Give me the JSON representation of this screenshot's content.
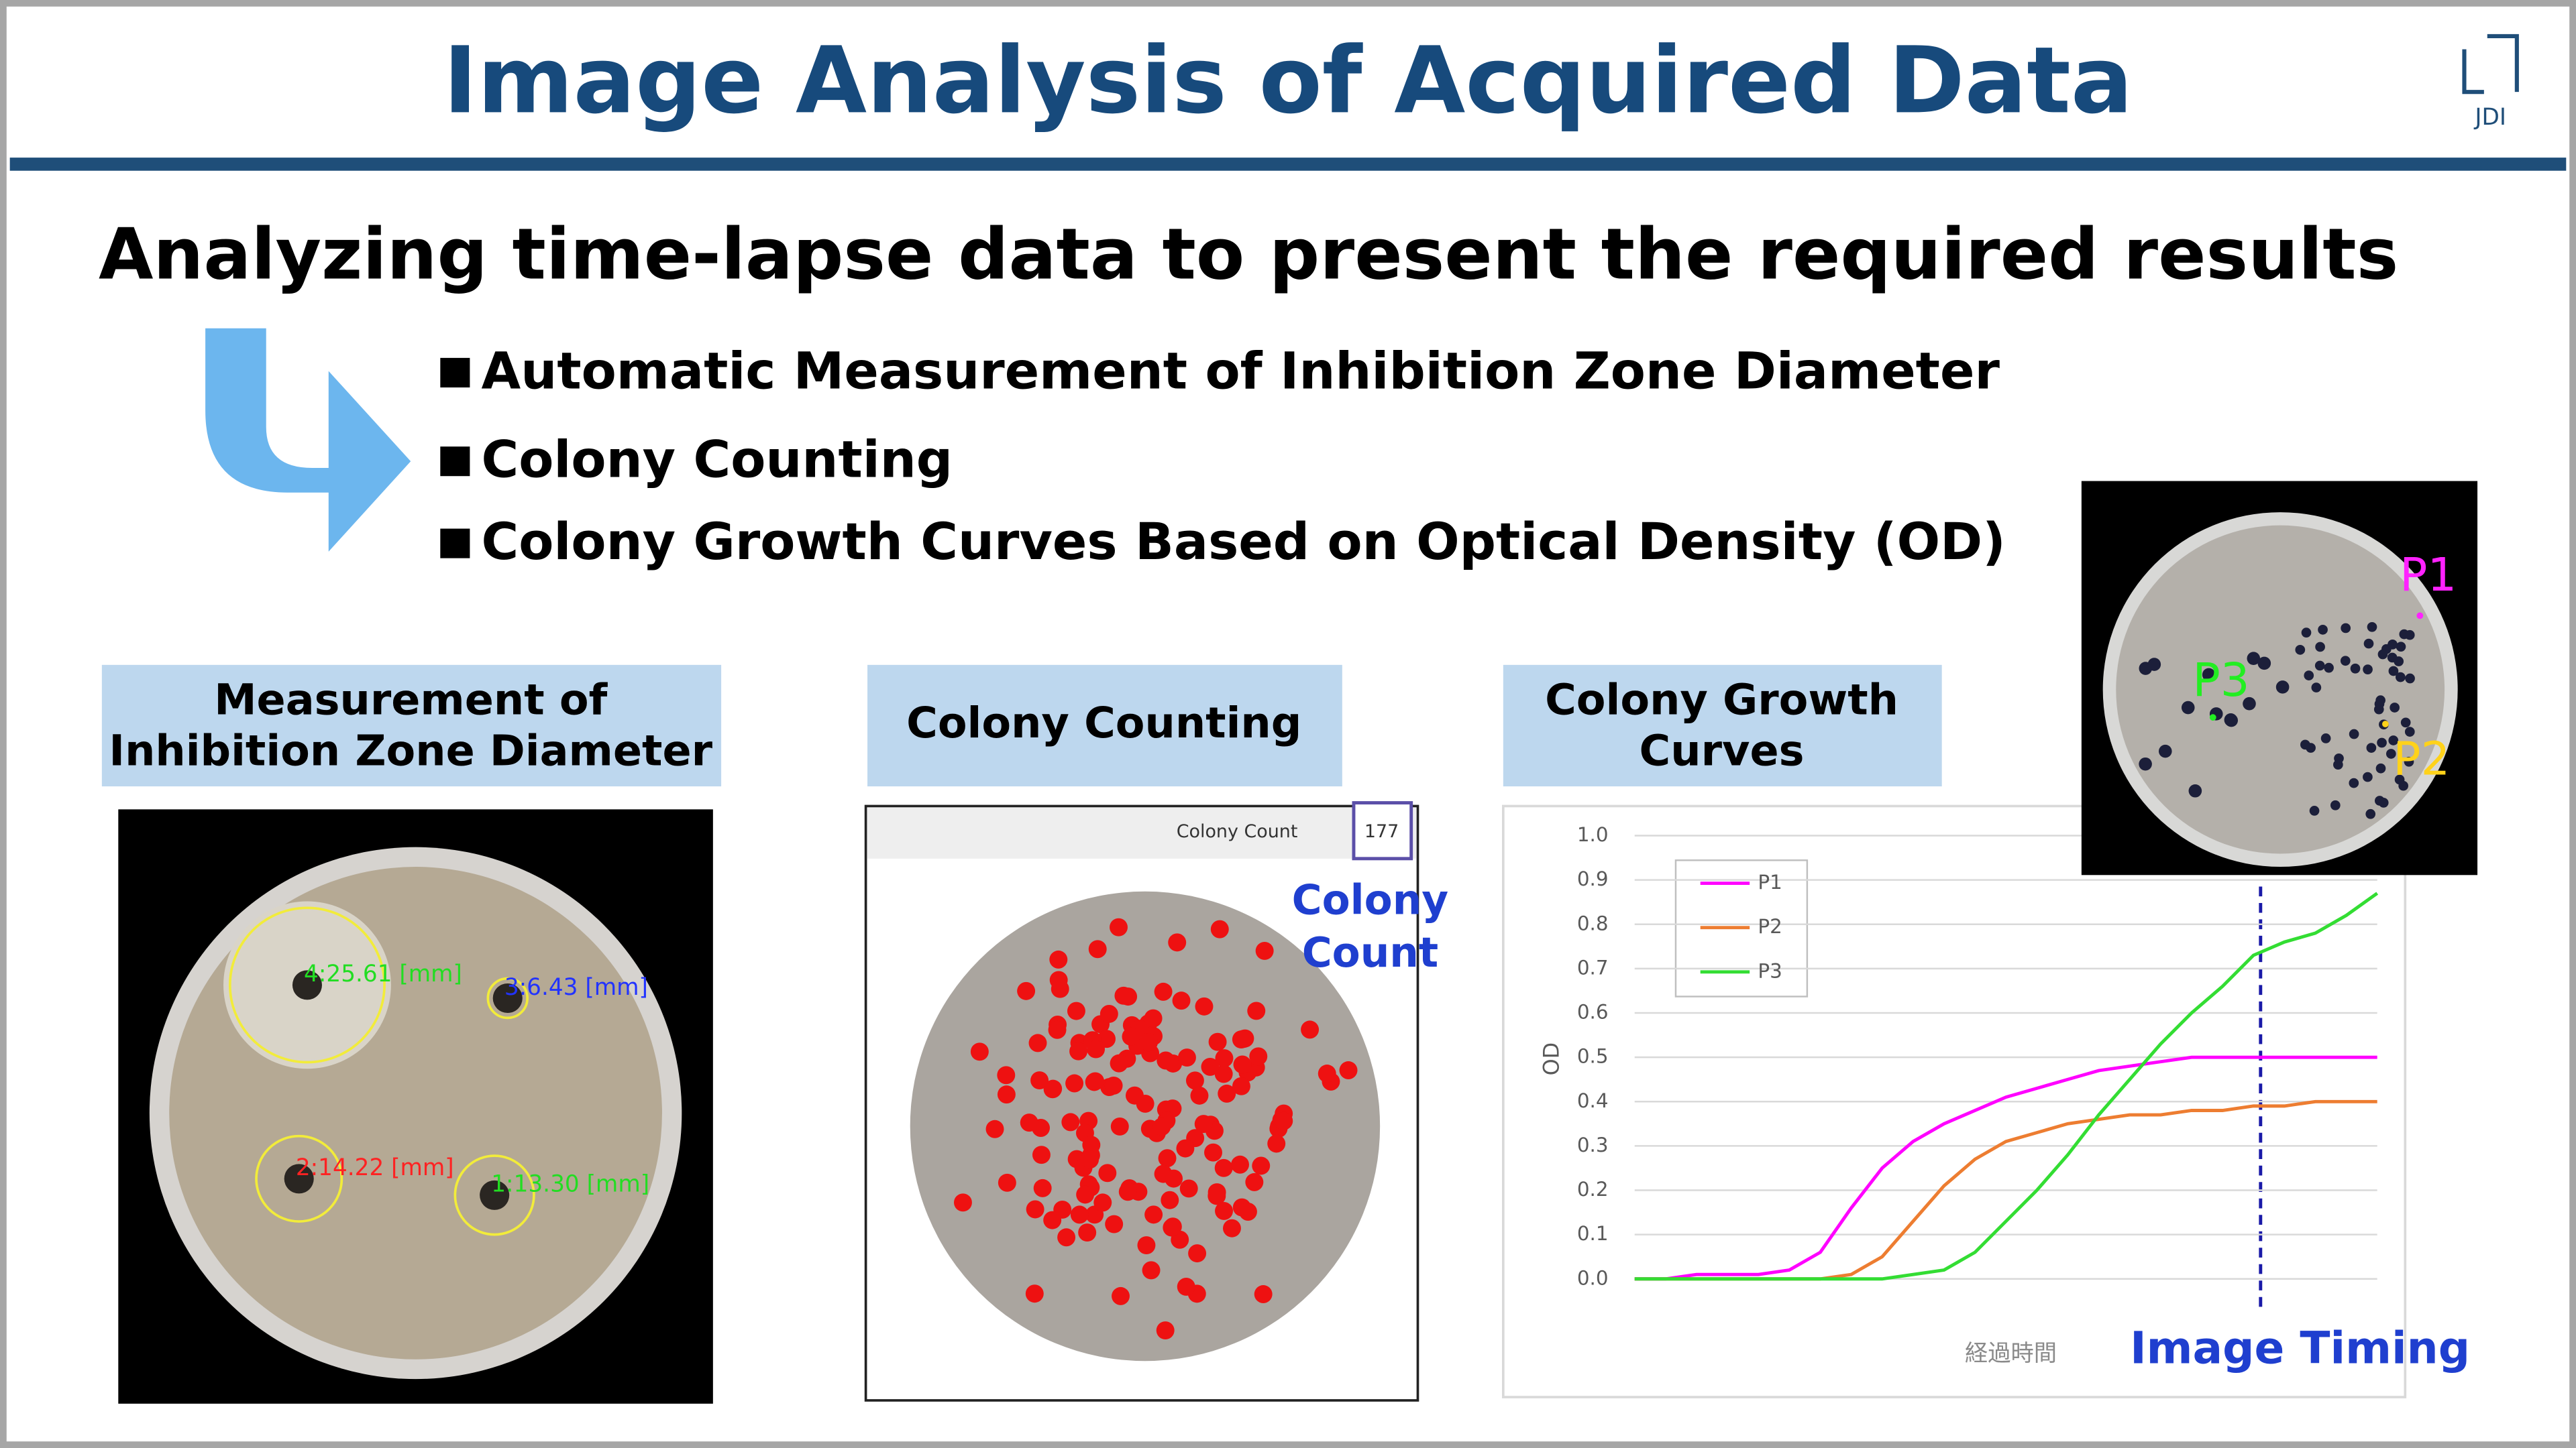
{
  "header": {
    "title": "Image Analysis of Acquired Data",
    "logo": "JDI"
  },
  "subtitle": "Analyzing time-lapse data to present the required results",
  "bullets": [
    "Automatic Measurement of Inhibition Zone Diameter",
    "Colony Counting",
    "Colony Growth Curves Based on Optical Density (OD)"
  ],
  "panels": [
    {
      "label": [
        "Measurement of",
        "Inhibition Zone Diameter"
      ]
    },
    {
      "label": [
        "Colony Counting"
      ]
    },
    {
      "label": [
        "Colony Growth",
        "Curves"
      ]
    }
  ],
  "zone_photo": {
    "measurements": [
      {
        "label": "4:25.61 [mm]",
        "color": "#22dd22"
      },
      {
        "label": "3:6.43 [mm]",
        "color": "#2233ff"
      },
      {
        "label": "2:14.22 [mm]",
        "color": "#ff2222"
      },
      {
        "label": "1:13.30 [mm]",
        "color": "#22dd22"
      }
    ]
  },
  "colony_counter": {
    "field": "Colony Count",
    "count": 177
  },
  "colony_callout": [
    "Colony",
    "Count"
  ],
  "chart_data": {
    "type": "line",
    "xlabel": "経過時間",
    "ylabel": "OD",
    "ylim": [
      0,
      1
    ],
    "yticks": [
      {
        "value": 0,
        "label": "0.0"
      },
      0.1,
      0.2,
      0.3,
      0.4,
      0.5,
      0.6,
      0.7,
      0.8,
      0.9,
      {
        "value": 1,
        "label": "1.0"
      }
    ],
    "grid": true,
    "series": [
      {
        "name": "P1",
        "color": "#ff00ff",
        "values": [
          0,
          0,
          0.01,
          0.01,
          0.01,
          0.02,
          0.06,
          0.16,
          0.25,
          0.31,
          0.35,
          0.38,
          0.41,
          0.43,
          0.45,
          0.47,
          0.48,
          0.49,
          0.5,
          0.5,
          0.5,
          0.5,
          0.5,
          0.5,
          0.5
        ]
      },
      {
        "name": "P2",
        "color": "#ed7d31",
        "values": [
          0,
          0,
          0,
          0,
          0,
          0,
          0,
          0.01,
          0.05,
          0.13,
          0.21,
          0.27,
          0.31,
          0.33,
          0.35,
          0.36,
          0.37,
          0.37,
          0.38,
          0.38,
          0.39,
          0.39,
          0.4,
          0.4,
          0.4
        ]
      },
      {
        "name": "P3",
        "color": "#33dd33",
        "values": [
          0,
          0,
          0,
          0,
          0,
          0,
          0,
          0,
          0,
          0.01,
          0.02,
          0.06,
          0.13,
          0.2,
          0.28,
          0.37,
          0.45,
          0.53,
          0.6,
          0.66,
          0.73,
          0.76,
          0.78,
          0.82,
          0.87
        ]
      }
    ],
    "annotation": "Image Timing"
  },
  "od_photo": {
    "points": [
      {
        "name": "P1",
        "color": "#ff22ff"
      },
      {
        "name": "P2",
        "color": "#ffd21a"
      },
      {
        "name": "P3",
        "color": "#22ee22"
      }
    ]
  }
}
